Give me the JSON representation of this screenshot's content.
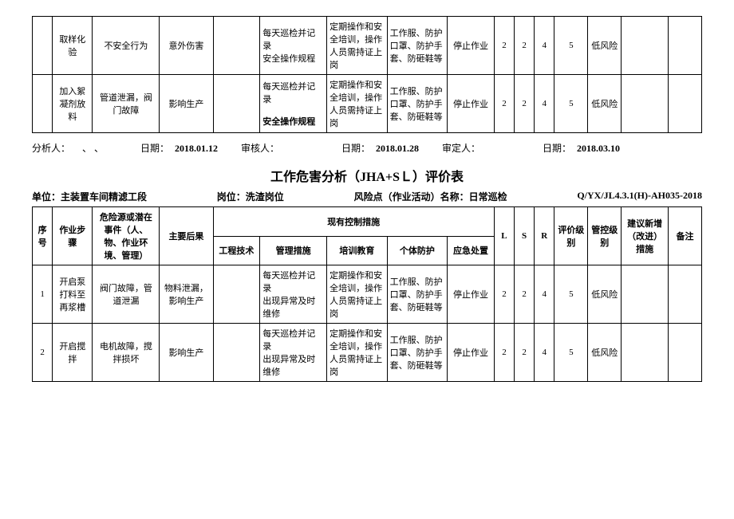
{
  "topTable": {
    "rows": [
      {
        "step": "取样化验",
        "hazard": "不安全行为",
        "consequence": "意外伤害",
        "eng": "",
        "mgmt": "每天巡检并记录\n安全操作规程",
        "training": "定期操作和安全培训，操作人员需持证上岗",
        "ppe": "工作服、防护口罩、防护手套、防砸鞋等",
        "emergency": "停止作业",
        "L": "2",
        "S": "2",
        "R": "4",
        "level": "5",
        "ctrlLevel": "低风险",
        "suggest": "",
        "remark": ""
      },
      {
        "step": "加入絮凝剂放料",
        "hazard": "管道泄漏，阀门故障",
        "consequence": "影响生产",
        "eng": "",
        "mgmt": "每天巡检并记录\n\n安全操作规程",
        "mgmt_html": true,
        "training": "定期操作和安全培训，操作人员需持证上岗",
        "ppe": "工作服、防护口罩、防护手套、防砸鞋等",
        "emergency": "停止作业",
        "L": "2",
        "S": "2",
        "R": "4",
        "level": "5",
        "ctrlLevel": "低风险",
        "suggest": "",
        "remark": ""
      }
    ]
  },
  "sign": {
    "analyst_label": "分析人：",
    "analyst_val": "、  、",
    "date1_label": "日期：",
    "date1": "2018.01.12",
    "reviewer_label": "审核人：",
    "date2_label": "日期：",
    "date2": "2018.01.28",
    "approver_label": "审定人：",
    "date3_label": "日期：",
    "date3": "2018.03.10"
  },
  "title": "工作危害分析（JHA+SＬ）评价表",
  "meta": {
    "unit_label": "单位：",
    "unit": "主装置车间精滤工段",
    "post_label": "岗位：",
    "post": "洗渣岗位",
    "risk_label": "风险点（作业活动）名称：",
    "risk": "日常巡检",
    "code": "Q/YX/JL4.3.1(H)-AH035-2018"
  },
  "header": {
    "seq": "序号",
    "step": "作业步骤",
    "hazard": "危险源或潜在事件（人、物、作业环境、管理）",
    "consequence": "主要后果",
    "controls": "现有控制措施",
    "eng": "工程技术",
    "mgmt": "管理措施",
    "training": "培训教育",
    "ppe": "个体防护",
    "emergency": "应急处置",
    "L": "L",
    "S": "S",
    "R": "R",
    "level": "评价级别",
    "ctrlLevel": "管控级别",
    "suggest": "建议新增（改进）措施",
    "remark": "备注"
  },
  "rows": [
    {
      "seq": "1",
      "step": "开启泵打料至再浆槽",
      "hazard": "阀门故障，管道泄漏",
      "consequence": "物料泄漏，影响生产",
      "eng": "",
      "mgmt": "每天巡检并记录\n出现异常及时维修",
      "training": "定期操作和安全培训，操作人员需持证上岗",
      "ppe": "工作服、防护口罩、防护手套、防砸鞋等",
      "emergency": "停止作业",
      "L": "2",
      "S": "2",
      "R": "4",
      "level": "5",
      "ctrlLevel": "低风险",
      "suggest": "",
      "remark": ""
    },
    {
      "seq": "2",
      "step": "开启搅拌",
      "hazard": "电机故障，搅拌损坏",
      "consequence": "影响生产",
      "eng": "",
      "mgmt": "每天巡检并记录\n出现异常及时维修",
      "training": "定期操作和安全培训，操作人员需持证上岗",
      "ppe": "工作服、防护口罩、防护手套、防砸鞋等",
      "emergency": "停止作业",
      "L": "2",
      "S": "2",
      "R": "4",
      "level": "5",
      "ctrlLevel": "低风险",
      "suggest": "",
      "remark": ""
    }
  ],
  "colWidths": {
    "seq": "3%",
    "step": "6%",
    "hazard": "10%",
    "consequence": "8%",
    "eng": "7%",
    "mgmt": "10%",
    "training": "9%",
    "ppe": "9%",
    "emergency": "7%",
    "L": "3%",
    "S": "3%",
    "R": "3%",
    "level": "5%",
    "ctrlLevel": "5%",
    "suggest": "7%",
    "remark": "5%"
  }
}
